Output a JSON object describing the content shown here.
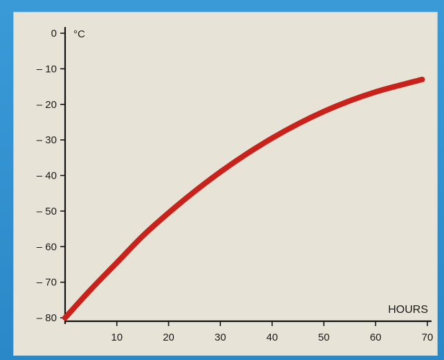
{
  "colors": {
    "frame": "#2f8fd0",
    "panel": "#e7e3d7",
    "axis": "#111111",
    "curve": "#c8221b"
  },
  "chart_data": {
    "type": "line",
    "title": "",
    "xlabel": "HOURS",
    "ylabel": "°C",
    "xlim": [
      0,
      70
    ],
    "ylim": [
      -80,
      0
    ],
    "x_ticks": [
      10,
      20,
      30,
      40,
      50,
      60,
      70
    ],
    "y_ticks": [
      0,
      -10,
      -20,
      -30,
      -40,
      -50,
      -60,
      -70,
      -80
    ],
    "x_tick_labels": [
      "10",
      "20",
      "30",
      "40",
      "50",
      "60",
      "70"
    ],
    "y_tick_labels": [
      "0",
      "– 10",
      "– 20",
      "– 30",
      "– 40",
      "– 50",
      "– 60",
      "– 70",
      "– 80"
    ],
    "grid": false,
    "series": [
      {
        "x": [
          0,
          5,
          10,
          15,
          20,
          25,
          30,
          35,
          40,
          45,
          50,
          55,
          60,
          65,
          69
        ],
        "y": [
          -80,
          -72,
          -64.5,
          -57,
          -50.5,
          -44.5,
          -39,
          -34,
          -29.5,
          -25.5,
          -22,
          -19,
          -16.5,
          -14.5,
          -13
        ]
      }
    ]
  }
}
